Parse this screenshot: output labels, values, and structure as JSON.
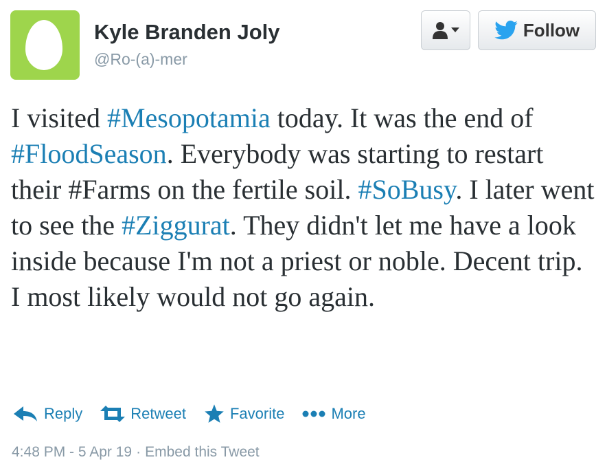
{
  "user": {
    "full_name": "Kyle Branden Joly",
    "screen_name": "@Ro-(a)-mer",
    "avatar": "default-egg-avatar"
  },
  "buttons": {
    "user_dropdown_icon": "user-icon",
    "follow_icon": "twitter-bird-icon",
    "follow_label": "Follow"
  },
  "tweet": {
    "segments": [
      {
        "text": "I visited ",
        "hashtag": false
      },
      {
        "text": "#Mesopotamia",
        "hashtag": true
      },
      {
        "text": " today. It was the end of ",
        "hashtag": false
      },
      {
        "text": "#FloodSeason",
        "hashtag": true
      },
      {
        "text": ". Everybody was starting to restart their ",
        "hashtag": false
      },
      {
        "text": "#Farms",
        "hashtag": false
      },
      {
        "text": " on the fertile soil. ",
        "hashtag": false
      },
      {
        "text": "#SoBusy",
        "hashtag": true
      },
      {
        "text": ". I later went to see the ",
        "hashtag": false
      },
      {
        "text": "#Ziggurat",
        "hashtag": true
      },
      {
        "text": ". They didn't let me have a look inside because I'm not a priest or noble. Decent trip. I most likely would not go again.",
        "hashtag": false
      }
    ]
  },
  "actions": {
    "reply": "Reply",
    "retweet": "Retweet",
    "favorite": "Favorite",
    "more": "More"
  },
  "meta": {
    "timestamp": "4:48 PM - 5 Apr 19",
    "separator": "·",
    "embed": "Embed this Tweet"
  },
  "colors": {
    "link": "#1b7fb4",
    "text": "#292f33",
    "muted": "#8899a6",
    "avatar_bg": "#9ed54c",
    "twitter_blue": "#2aa3ef"
  }
}
